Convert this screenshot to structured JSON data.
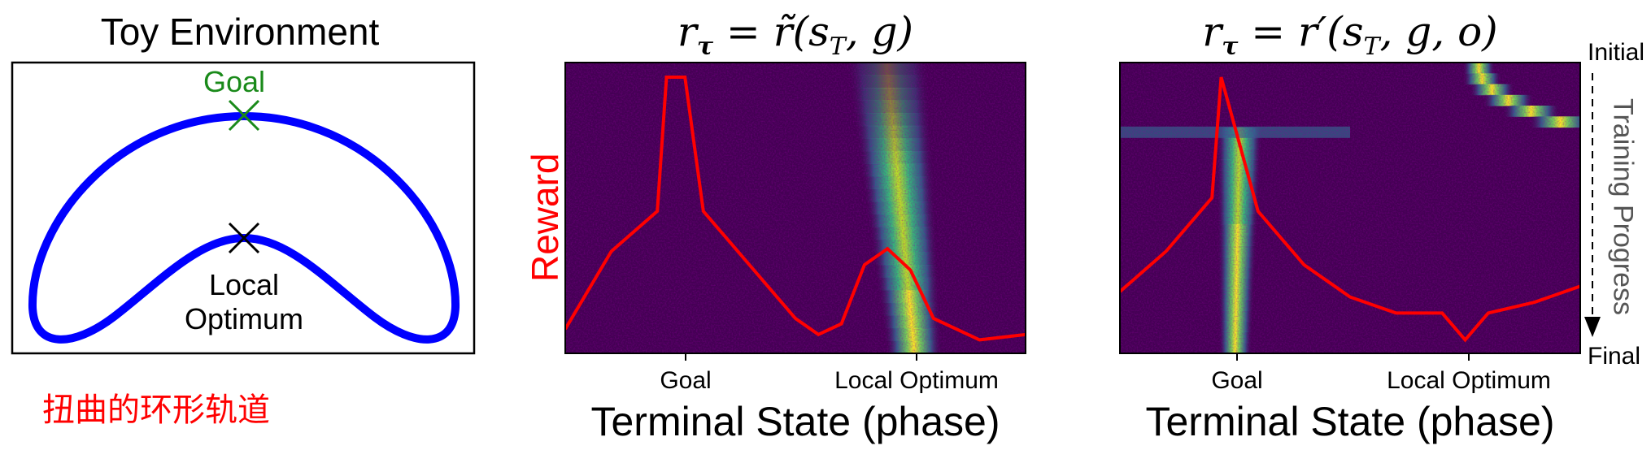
{
  "toy": {
    "title": "Toy Environment",
    "goal_label": "Goal",
    "local_line1": "Local",
    "local_line2": "Optimum",
    "caption": "扭曲的环形轨道"
  },
  "axes": {
    "xlabel": "Terminal State (phase)",
    "reward_label": "Reward",
    "initial_label": "Initial",
    "final_label": "Final",
    "progress_label": "Training Progress"
  },
  "colors": {
    "track": "#0000ff",
    "goal_marker": "#1a8a1a",
    "reward": "#ff0000",
    "heatmap_bg": "#440154"
  },
  "chart_data": [
    {
      "type": "heatmap",
      "title": "r_τ = r̃(s_T, g)",
      "xlabel": "Terminal State (phase)",
      "x_ticks": [
        "Goal",
        "Local Optimum"
      ],
      "reward_curve": {
        "name": "Reward",
        "x": [
          0.0,
          0.1,
          0.2,
          0.22,
          0.26,
          0.3,
          0.4,
          0.5,
          0.55,
          0.6,
          0.65,
          0.7,
          0.75,
          0.8,
          0.9,
          1.0
        ],
        "y": [
          0.06,
          0.35,
          0.5,
          1.0,
          1.0,
          0.5,
          0.3,
          0.1,
          0.04,
          0.08,
          0.3,
          0.36,
          0.28,
          0.1,
          0.02,
          0.04
        ]
      },
      "density_band": {
        "center_initial": 0.7,
        "center_final": 0.76,
        "width_initial": 0.09,
        "width_final": 0.06
      }
    },
    {
      "type": "heatmap",
      "title": "r_τ = r′(s_T, g, o)",
      "xlabel": "Terminal State (phase)",
      "x_ticks": [
        "Goal",
        "Local Optimum"
      ],
      "reward_curve": {
        "name": "Reward",
        "x": [
          0.0,
          0.1,
          0.2,
          0.22,
          0.3,
          0.4,
          0.5,
          0.6,
          0.7,
          0.75,
          0.8,
          0.9,
          1.0
        ],
        "y": [
          0.2,
          0.35,
          0.55,
          1.0,
          0.5,
          0.3,
          0.18,
          0.12,
          0.12,
          0.02,
          0.12,
          0.16,
          0.22
        ],
        "dip_at": 0.75
      },
      "density_band": {
        "phase1_center": 0.78,
        "phase2_center": 0.26,
        "final_center": 0.25
      }
    }
  ]
}
